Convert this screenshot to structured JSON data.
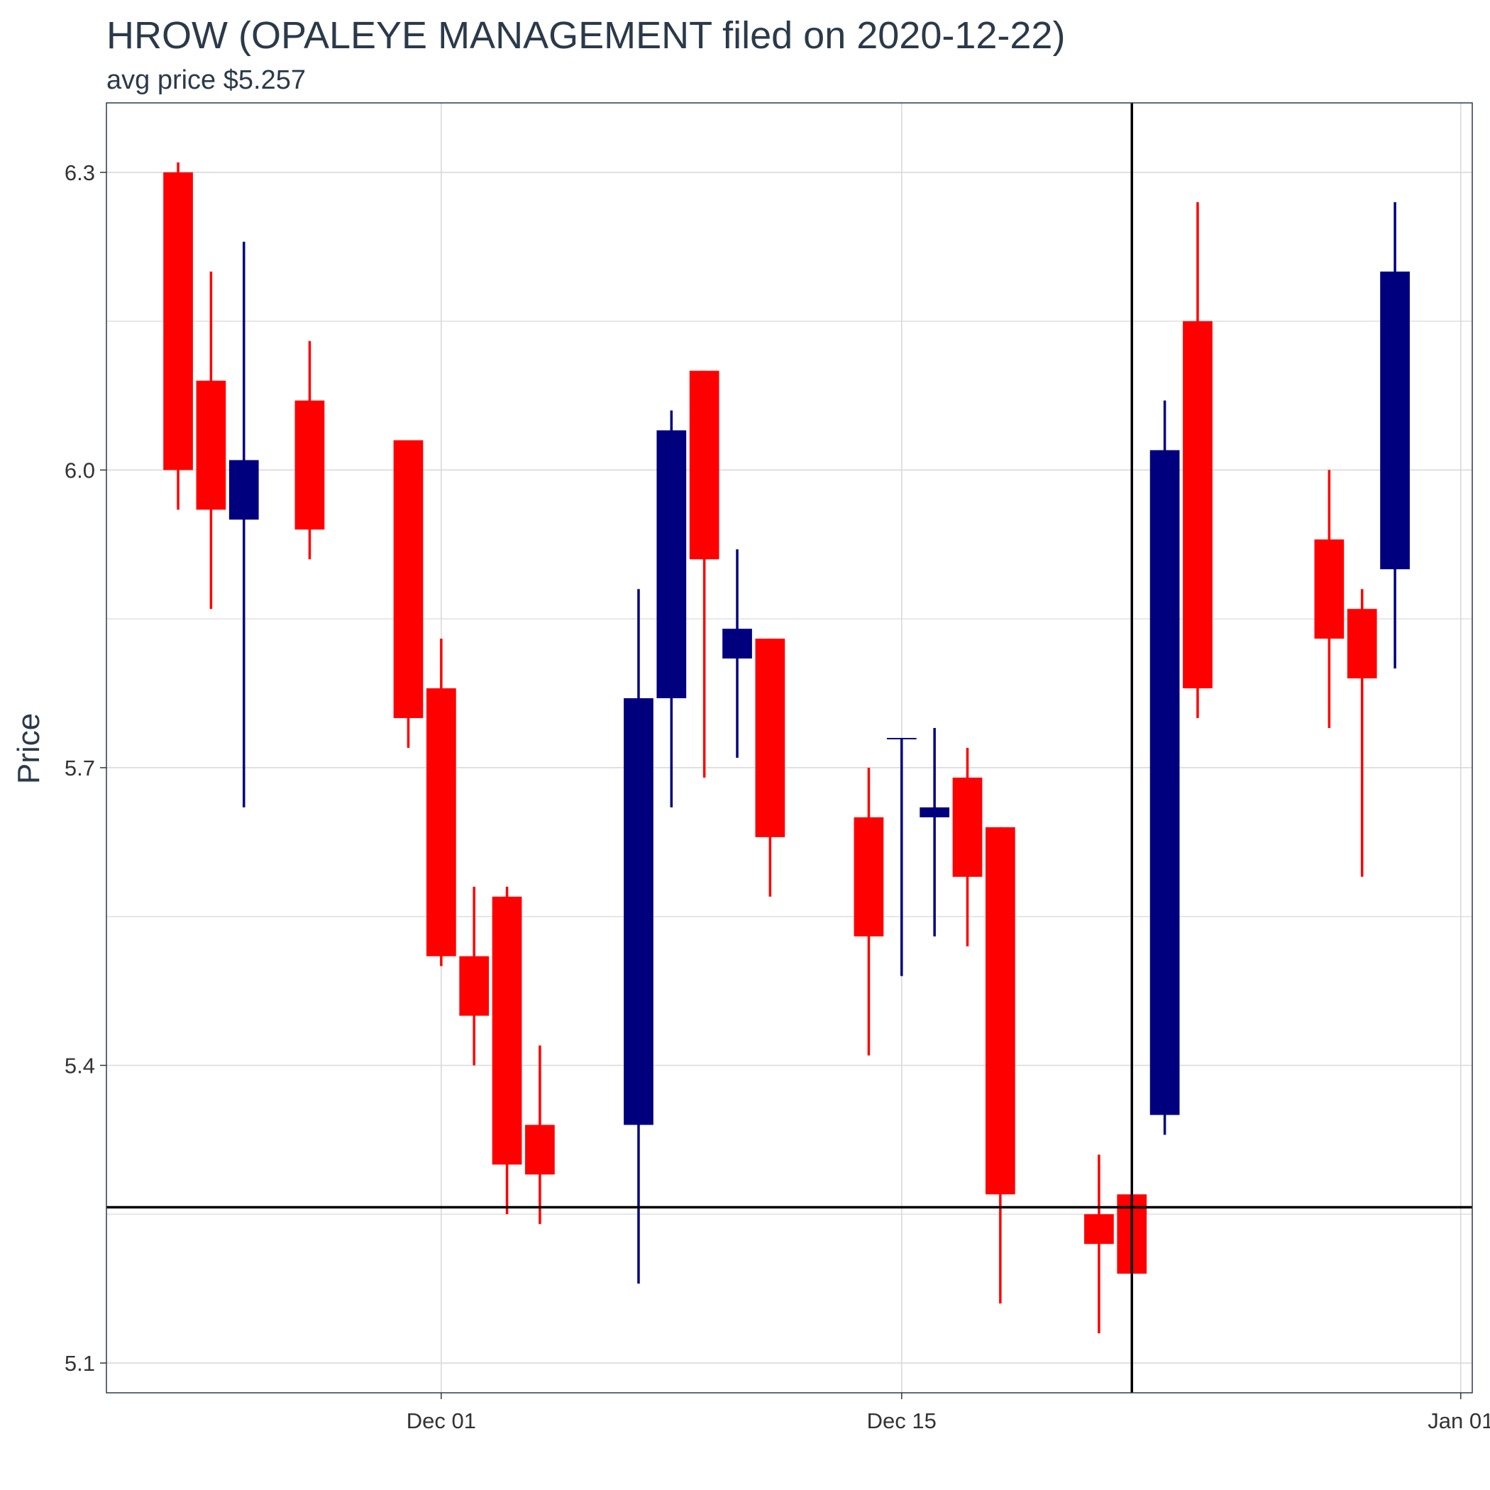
{
  "chart_data": {
    "type": "candlestick",
    "title": "HROW (OPALEYE MANAGEMENT filed on 2020-12-22)",
    "subtitle": "avg price $5.257",
    "xlabel": "",
    "ylabel": "Price",
    "ylim": [
      5.07,
      6.37
    ],
    "yticks": [
      5.1,
      5.4,
      5.7,
      6.0,
      6.3
    ],
    "xlim": [
      "2020-11-23",
      "2021-01-01"
    ],
    "xticks": [
      {
        "date": "2020-12-01",
        "label": "Dec 01"
      },
      {
        "date": "2020-12-15",
        "label": "Dec 15"
      },
      {
        "date": "2021-01-01",
        "label": "Jan 01"
      }
    ],
    "grid": true,
    "colors": {
      "up": "#00007f",
      "down": "#ff0000",
      "reference": "#000000",
      "grid": "#d9d9d9"
    },
    "reference_lines": {
      "hline": {
        "value": 5.257,
        "label": "avg price"
      },
      "vline": {
        "date": "2020-12-22",
        "label": "filed"
      }
    },
    "candles": [
      {
        "date": "2020-11-23",
        "open": 6.3,
        "high": 6.31,
        "low": 5.96,
        "close": 6.0
      },
      {
        "date": "2020-11-24",
        "open": 6.09,
        "high": 6.2,
        "low": 5.86,
        "close": 5.96
      },
      {
        "date": "2020-11-25",
        "open": 5.95,
        "high": 6.23,
        "low": 5.66,
        "close": 6.01
      },
      {
        "date": "2020-11-27",
        "open": 6.07,
        "high": 6.13,
        "low": 5.91,
        "close": 5.94
      },
      {
        "date": "2020-11-30",
        "open": 6.03,
        "high": 6.03,
        "low": 5.72,
        "close": 5.75
      },
      {
        "date": "2020-12-01",
        "open": 5.78,
        "high": 5.83,
        "low": 5.5,
        "close": 5.51
      },
      {
        "date": "2020-12-02",
        "open": 5.51,
        "high": 5.58,
        "low": 5.4,
        "close": 5.45
      },
      {
        "date": "2020-12-03",
        "open": 5.57,
        "high": 5.58,
        "low": 5.25,
        "close": 5.3
      },
      {
        "date": "2020-12-04",
        "open": 5.34,
        "high": 5.42,
        "low": 5.24,
        "close": 5.29
      },
      {
        "date": "2020-12-07",
        "open": 5.34,
        "high": 5.88,
        "low": 5.18,
        "close": 5.77
      },
      {
        "date": "2020-12-08",
        "open": 5.77,
        "high": 6.06,
        "low": 5.66,
        "close": 6.04
      },
      {
        "date": "2020-12-09",
        "open": 6.1,
        "high": 6.1,
        "low": 5.69,
        "close": 5.91
      },
      {
        "date": "2020-12-10",
        "open": 5.81,
        "high": 5.92,
        "low": 5.71,
        "close": 5.84
      },
      {
        "date": "2020-12-11",
        "open": 5.83,
        "high": 5.83,
        "low": 5.57,
        "close": 5.63
      },
      {
        "date": "2020-12-14",
        "open": 5.65,
        "high": 5.7,
        "low": 5.41,
        "close": 5.53
      },
      {
        "date": "2020-12-15",
        "open": 5.73,
        "high": 5.73,
        "low": 5.49,
        "close": 5.73
      },
      {
        "date": "2020-12-16",
        "open": 5.65,
        "high": 5.74,
        "low": 5.53,
        "close": 5.66
      },
      {
        "date": "2020-12-17",
        "open": 5.69,
        "high": 5.72,
        "low": 5.52,
        "close": 5.59
      },
      {
        "date": "2020-12-18",
        "open": 5.64,
        "high": 5.64,
        "low": 5.16,
        "close": 5.27
      },
      {
        "date": "2020-12-21",
        "open": 5.25,
        "high": 5.31,
        "low": 5.13,
        "close": 5.22
      },
      {
        "date": "2020-12-22",
        "open": 5.27,
        "high": 5.27,
        "low": 5.19,
        "close": 5.19
      },
      {
        "date": "2020-12-23",
        "open": 5.35,
        "high": 6.07,
        "low": 5.33,
        "close": 6.02
      },
      {
        "date": "2020-12-24",
        "open": 6.15,
        "high": 6.27,
        "low": 5.75,
        "close": 5.78
      },
      {
        "date": "2020-12-28",
        "open": 5.93,
        "high": 6.0,
        "low": 5.74,
        "close": 5.83
      },
      {
        "date": "2020-12-29",
        "open": 5.86,
        "high": 5.88,
        "low": 5.59,
        "close": 5.79
      },
      {
        "date": "2020-12-30",
        "open": 5.9,
        "high": 6.27,
        "low": 5.8,
        "close": 6.2
      }
    ]
  }
}
